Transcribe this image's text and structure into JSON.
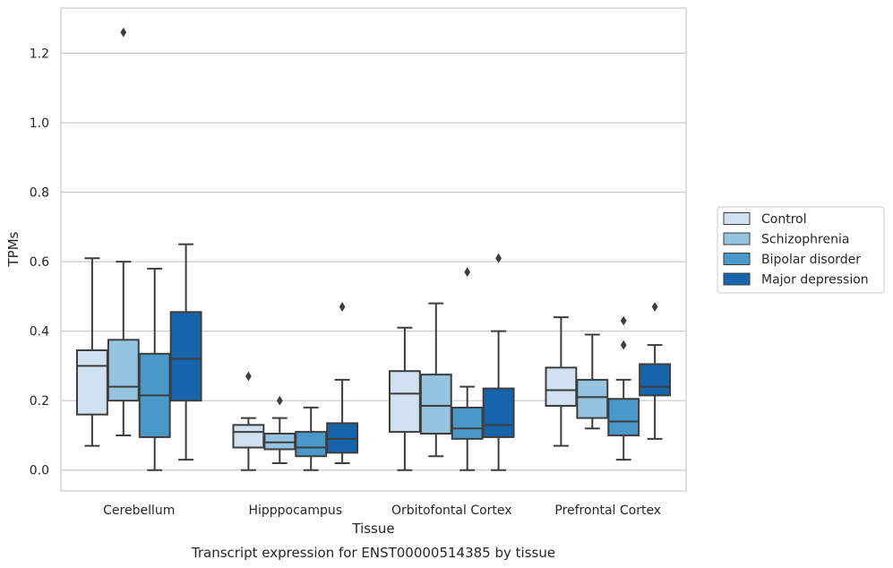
{
  "chart_data": {
    "type": "box",
    "title": "",
    "caption": "Transcript expression for ENST00000514385 by tissue",
    "xlabel": "Tissue",
    "ylabel": "TPMs",
    "ylim": [
      -0.06,
      1.33
    ],
    "yticks": [
      "0.0",
      "0.2",
      "0.4",
      "0.6",
      "0.8",
      "1.0",
      "1.2"
    ],
    "grid": true,
    "legend_position": "right",
    "categories": [
      "Cerebellum",
      "Hipppocampus",
      "Orbitofontal Cortex",
      "Prefrontal Cortex"
    ],
    "series": [
      {
        "name": "Control",
        "color": "#d0e1f2",
        "boxes": [
          {
            "whislo": 0.07,
            "q1": 0.16,
            "med": 0.3,
            "q3": 0.345,
            "whishi": 0.61,
            "fliers": []
          },
          {
            "whislo": 0.0,
            "q1": 0.065,
            "med": 0.11,
            "q3": 0.13,
            "whishi": 0.15,
            "fliers": [
              0.27
            ]
          },
          {
            "whislo": 0.0,
            "q1": 0.11,
            "med": 0.22,
            "q3": 0.285,
            "whishi": 0.41,
            "fliers": []
          },
          {
            "whislo": 0.07,
            "q1": 0.185,
            "med": 0.23,
            "q3": 0.295,
            "whishi": 0.44,
            "fliers": []
          }
        ]
      },
      {
        "name": "Schizophrenia",
        "color": "#94c4df",
        "boxes": [
          {
            "whislo": 0.1,
            "q1": 0.2,
            "med": 0.24,
            "q3": 0.375,
            "whishi": 0.6,
            "fliers": [
              1.26
            ]
          },
          {
            "whislo": 0.02,
            "q1": 0.06,
            "med": 0.08,
            "q3": 0.105,
            "whishi": 0.15,
            "fliers": [
              0.2
            ]
          },
          {
            "whislo": 0.04,
            "q1": 0.105,
            "med": 0.185,
            "q3": 0.275,
            "whishi": 0.48,
            "fliers": []
          },
          {
            "whislo": 0.12,
            "q1": 0.15,
            "med": 0.21,
            "q3": 0.26,
            "whishi": 0.39,
            "fliers": []
          }
        ]
      },
      {
        "name": "Bipolar disorder",
        "color": "#4a98c9",
        "boxes": [
          {
            "whislo": 0.0,
            "q1": 0.095,
            "med": 0.215,
            "q3": 0.335,
            "whishi": 0.58,
            "fliers": []
          },
          {
            "whislo": 0.0,
            "q1": 0.04,
            "med": 0.065,
            "q3": 0.11,
            "whishi": 0.18,
            "fliers": []
          },
          {
            "whislo": 0.0,
            "q1": 0.09,
            "med": 0.12,
            "q3": 0.18,
            "whishi": 0.24,
            "fliers": [
              0.57
            ]
          },
          {
            "whislo": 0.03,
            "q1": 0.1,
            "med": 0.14,
            "q3": 0.205,
            "whishi": 0.26,
            "fliers": [
              0.36,
              0.43
            ]
          }
        ]
      },
      {
        "name": "Major depression",
        "color": "#1764ab",
        "boxes": [
          {
            "whislo": 0.03,
            "q1": 0.2,
            "med": 0.32,
            "q3": 0.455,
            "whishi": 0.65,
            "fliers": []
          },
          {
            "whislo": 0.02,
            "q1": 0.05,
            "med": 0.09,
            "q3": 0.135,
            "whishi": 0.26,
            "fliers": [
              0.47
            ]
          },
          {
            "whislo": 0.0,
            "q1": 0.095,
            "med": 0.13,
            "q3": 0.235,
            "whishi": 0.4,
            "fliers": [
              0.61
            ]
          },
          {
            "whislo": 0.09,
            "q1": 0.215,
            "med": 0.24,
            "q3": 0.305,
            "whishi": 0.36,
            "fliers": [
              0.47
            ]
          }
        ]
      }
    ]
  }
}
